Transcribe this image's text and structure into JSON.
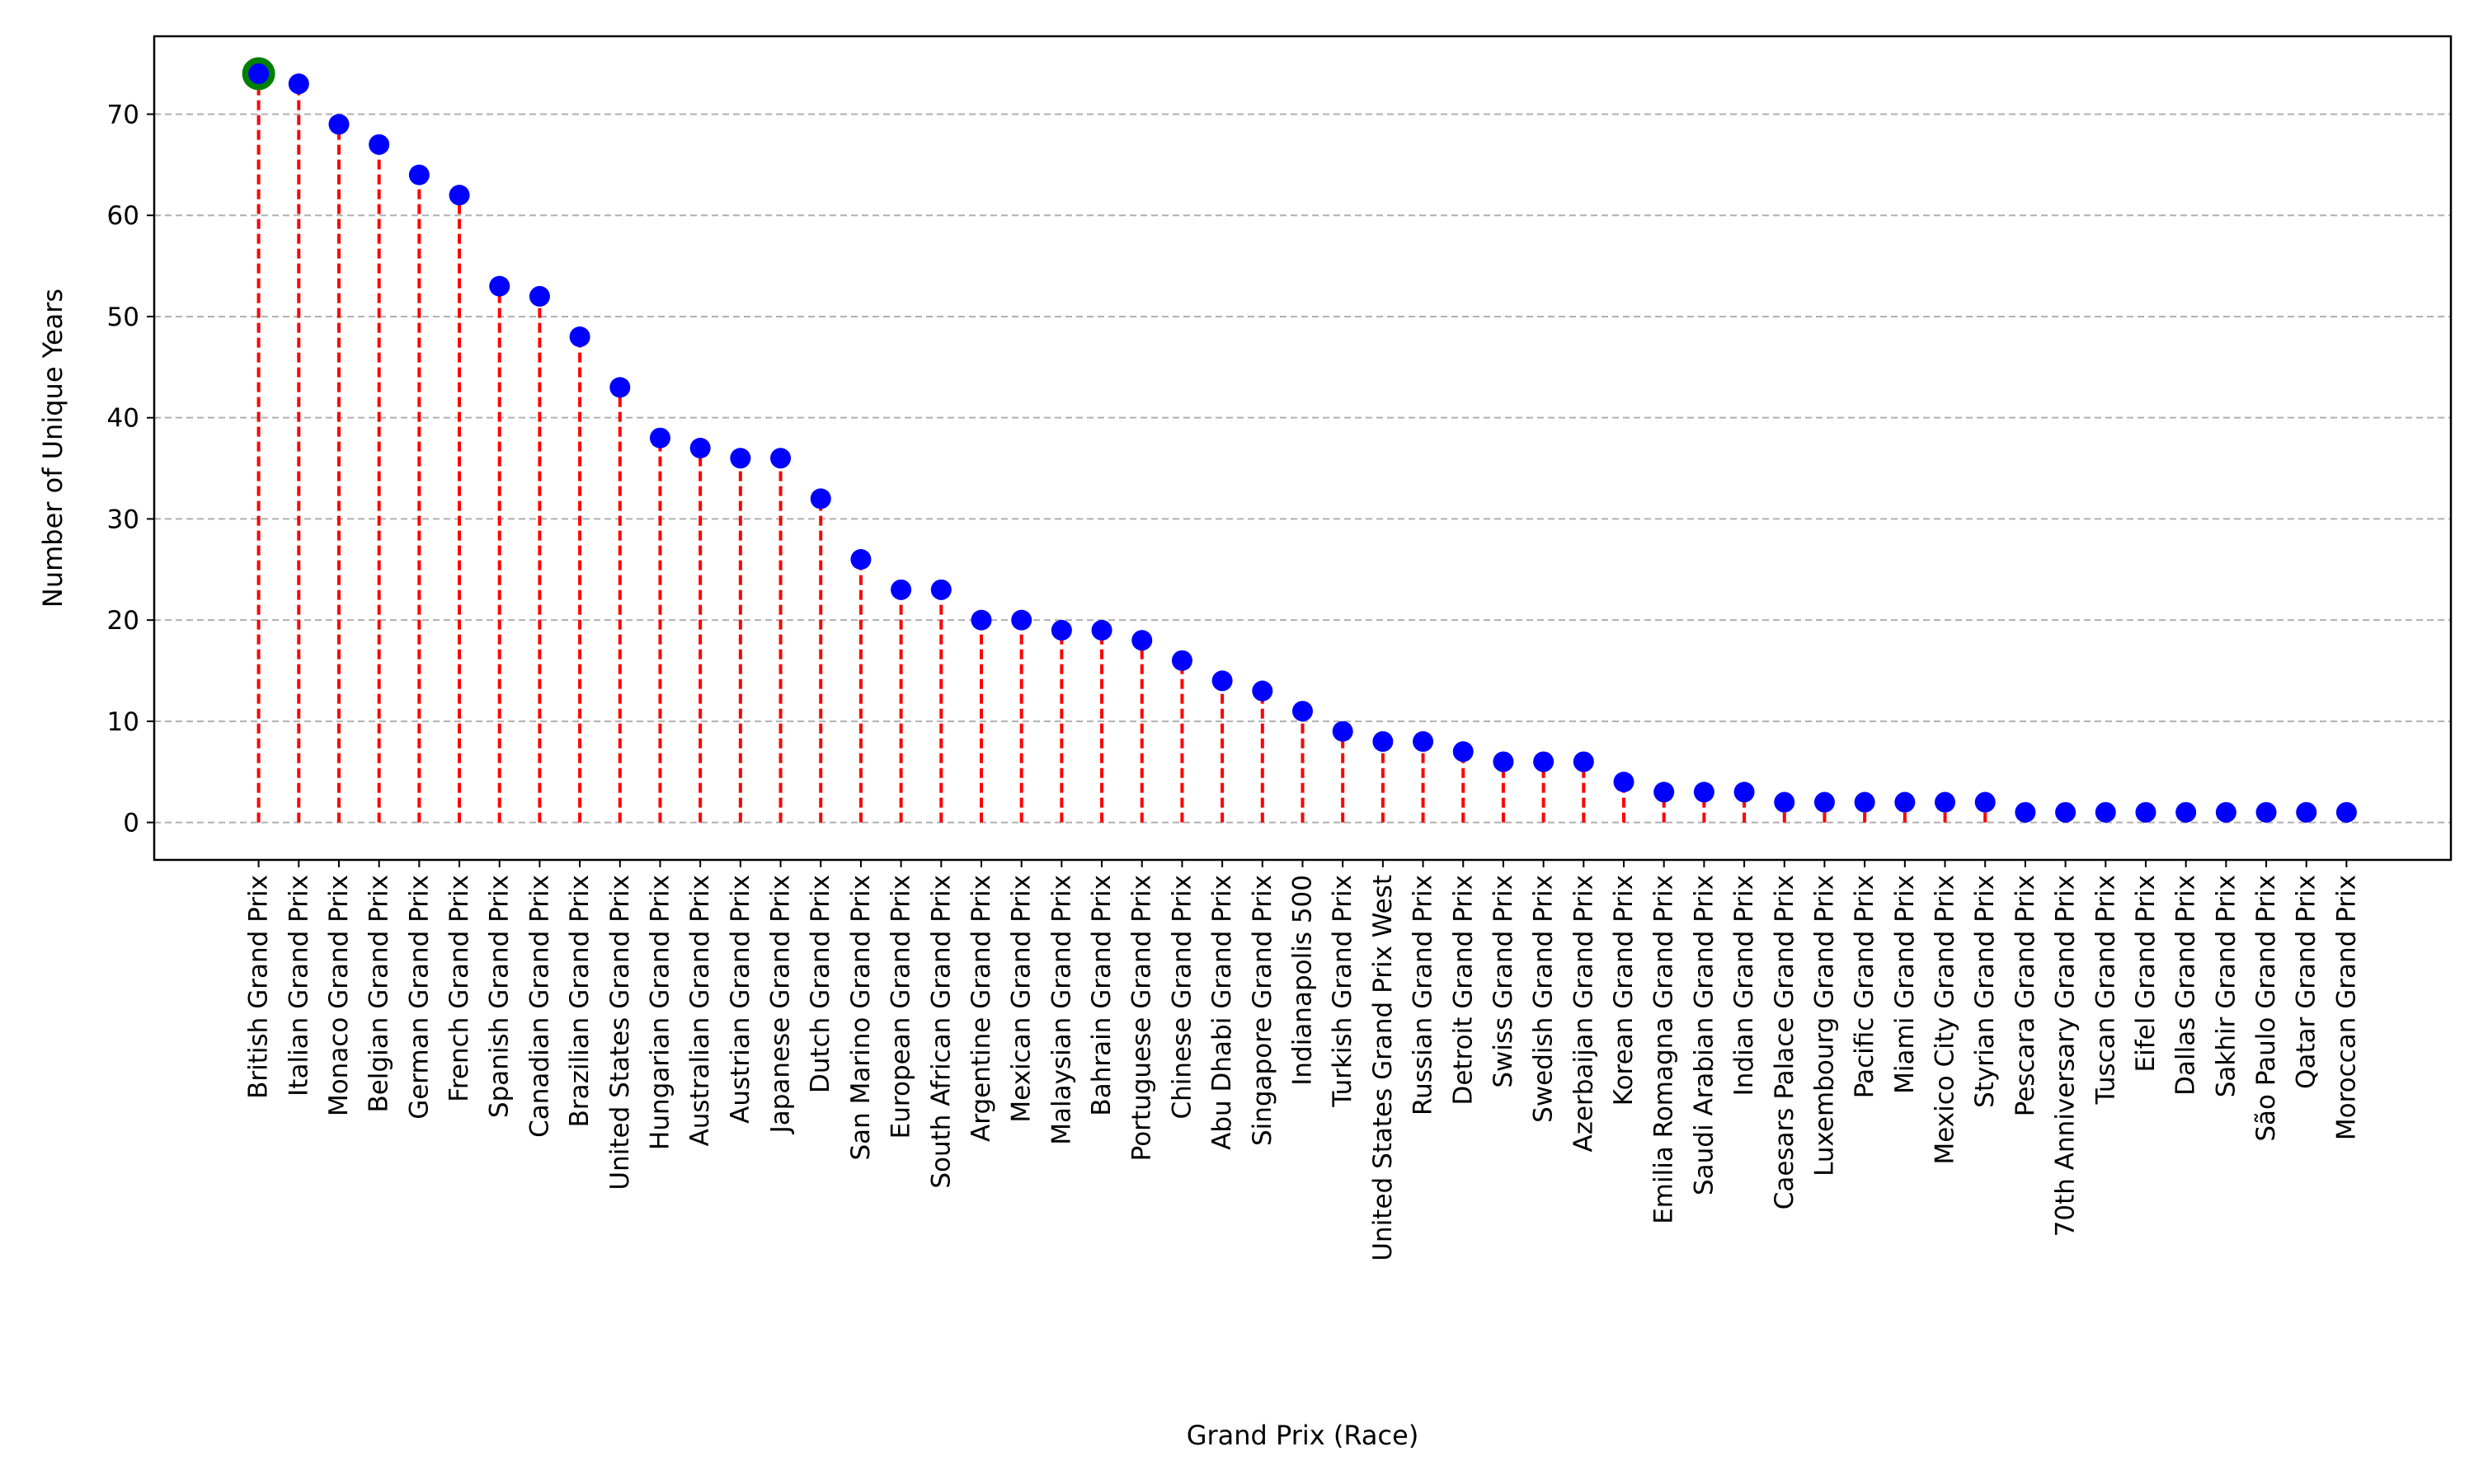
{
  "chart_data": {
    "type": "lollipop",
    "title": "",
    "xlabel": "Grand Prix (Race)",
    "ylabel": "Number of Unique Years",
    "ylim": [
      -3.7,
      77.7
    ],
    "yticks": [
      0,
      10,
      20,
      30,
      40,
      50,
      60,
      70
    ],
    "grid": "y-dashed",
    "legend": "none",
    "colors": {
      "stem": "#ff0000",
      "marker": "#0000ff",
      "highlight_ring": "#008000",
      "grid": "#b0b0b0",
      "axes": "#000000"
    },
    "highlighted_category": "British Grand Prix",
    "categories": [
      "British Grand Prix",
      "Italian Grand Prix",
      "Monaco Grand Prix",
      "Belgian Grand Prix",
      "German Grand Prix",
      "French Grand Prix",
      "Spanish Grand Prix",
      "Canadian Grand Prix",
      "Brazilian Grand Prix",
      "United States Grand Prix",
      "Hungarian Grand Prix",
      "Australian Grand Prix",
      "Austrian Grand Prix",
      "Japanese Grand Prix",
      "Dutch Grand Prix",
      "San Marino Grand Prix",
      "European Grand Prix",
      "South African Grand Prix",
      "Argentine Grand Prix",
      "Mexican Grand Prix",
      "Malaysian Grand Prix",
      "Bahrain Grand Prix",
      "Portuguese Grand Prix",
      "Chinese Grand Prix",
      "Abu Dhabi Grand Prix",
      "Singapore Grand Prix",
      "Indianapolis 500",
      "Turkish Grand Prix",
      "United States Grand Prix West",
      "Russian Grand Prix",
      "Detroit Grand Prix",
      "Swiss Grand Prix",
      "Swedish Grand Prix",
      "Azerbaijan Grand Prix",
      "Korean Grand Prix",
      "Emilia Romagna Grand Prix",
      "Saudi Arabian Grand Prix",
      "Indian Grand Prix",
      "Caesars Palace Grand Prix",
      "Luxembourg Grand Prix",
      "Pacific Grand Prix",
      "Miami Grand Prix",
      "Mexico City Grand Prix",
      "Styrian Grand Prix",
      "Pescara Grand Prix",
      "70th Anniversary Grand Prix",
      "Tuscan Grand Prix",
      "Eifel Grand Prix",
      "Dallas Grand Prix",
      "Sakhir Grand Prix",
      "São Paulo Grand Prix",
      "Qatar Grand Prix",
      "Moroccan Grand Prix"
    ],
    "values": [
      74,
      73,
      69,
      67,
      64,
      62,
      53,
      52,
      48,
      43,
      38,
      37,
      36,
      36,
      32,
      26,
      23,
      23,
      20,
      20,
      19,
      19,
      18,
      16,
      14,
      13,
      11,
      9,
      8,
      8,
      7,
      6,
      6,
      6,
      4,
      3,
      3,
      3,
      2,
      2,
      2,
      2,
      2,
      2,
      1,
      1,
      1,
      1,
      1,
      1,
      1,
      1,
      1
    ]
  }
}
